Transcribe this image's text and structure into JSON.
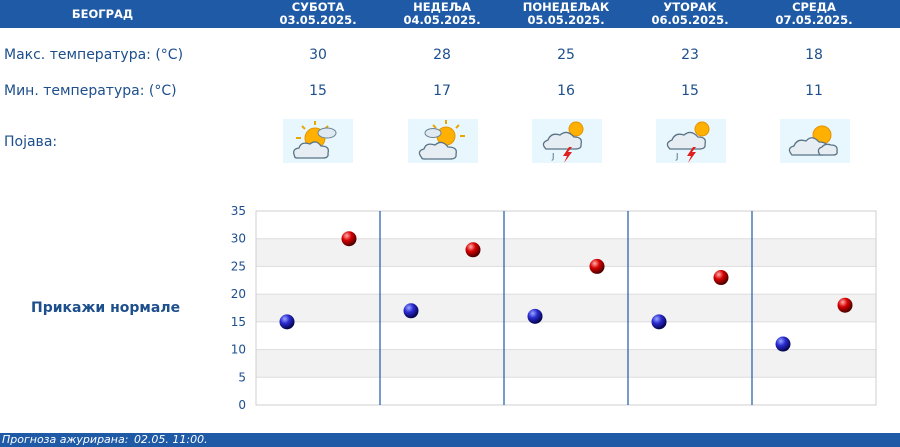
{
  "header": {
    "city": "БЕОГРАД",
    "days": [
      {
        "day": "СУБОТА",
        "date": "03.05.2025."
      },
      {
        "day": "НЕДЕЉА",
        "date": "04.05.2025."
      },
      {
        "day": "ПОНЕДЕЉАК",
        "date": "05.05.2025."
      },
      {
        "day": "УТОРАК",
        "date": "06.05.2025."
      },
      {
        "day": "СРЕДА",
        "date": "07.05.2025."
      }
    ]
  },
  "rows": {
    "max_label": "Макс. температура: (°C)",
    "min_label": "Мин. температура: (°C)",
    "phenomenon_label": "Појава:",
    "max_values": [
      "30",
      "28",
      "25",
      "23",
      "18"
    ],
    "min_values": [
      "15",
      "17",
      "16",
      "15",
      "11"
    ],
    "icons": [
      "sun-behind-clouds-icon",
      "sun-behind-clouds-icon",
      "thunderstorm-sun-icon",
      "thunderstorm-sun-icon",
      "partly-cloudy-icon"
    ]
  },
  "show_normals": "Прикажи нормале",
  "footer": {
    "updated_label": "Прогноза ажурирана:",
    "updated_value": "02.05. 11:00."
  },
  "chart_data": {
    "type": "scatter",
    "categories": [
      "СУБОТА",
      "НЕДЕЉА",
      "ПОНЕДЕЉАК",
      "УТОРАК",
      "СРЕДА"
    ],
    "series": [
      {
        "values": [
          15,
          17,
          16,
          15,
          11
        ],
        "color": "#1a1ab4"
      },
      {
        "values": [
          30,
          28,
          25,
          23,
          18
        ],
        "color": "#cc0000"
      }
    ],
    "ylim": [
      0,
      35
    ],
    "yticks": [
      "0",
      "5",
      "10",
      "15",
      "20",
      "25",
      "30",
      "35"
    ],
    "grid": true
  }
}
